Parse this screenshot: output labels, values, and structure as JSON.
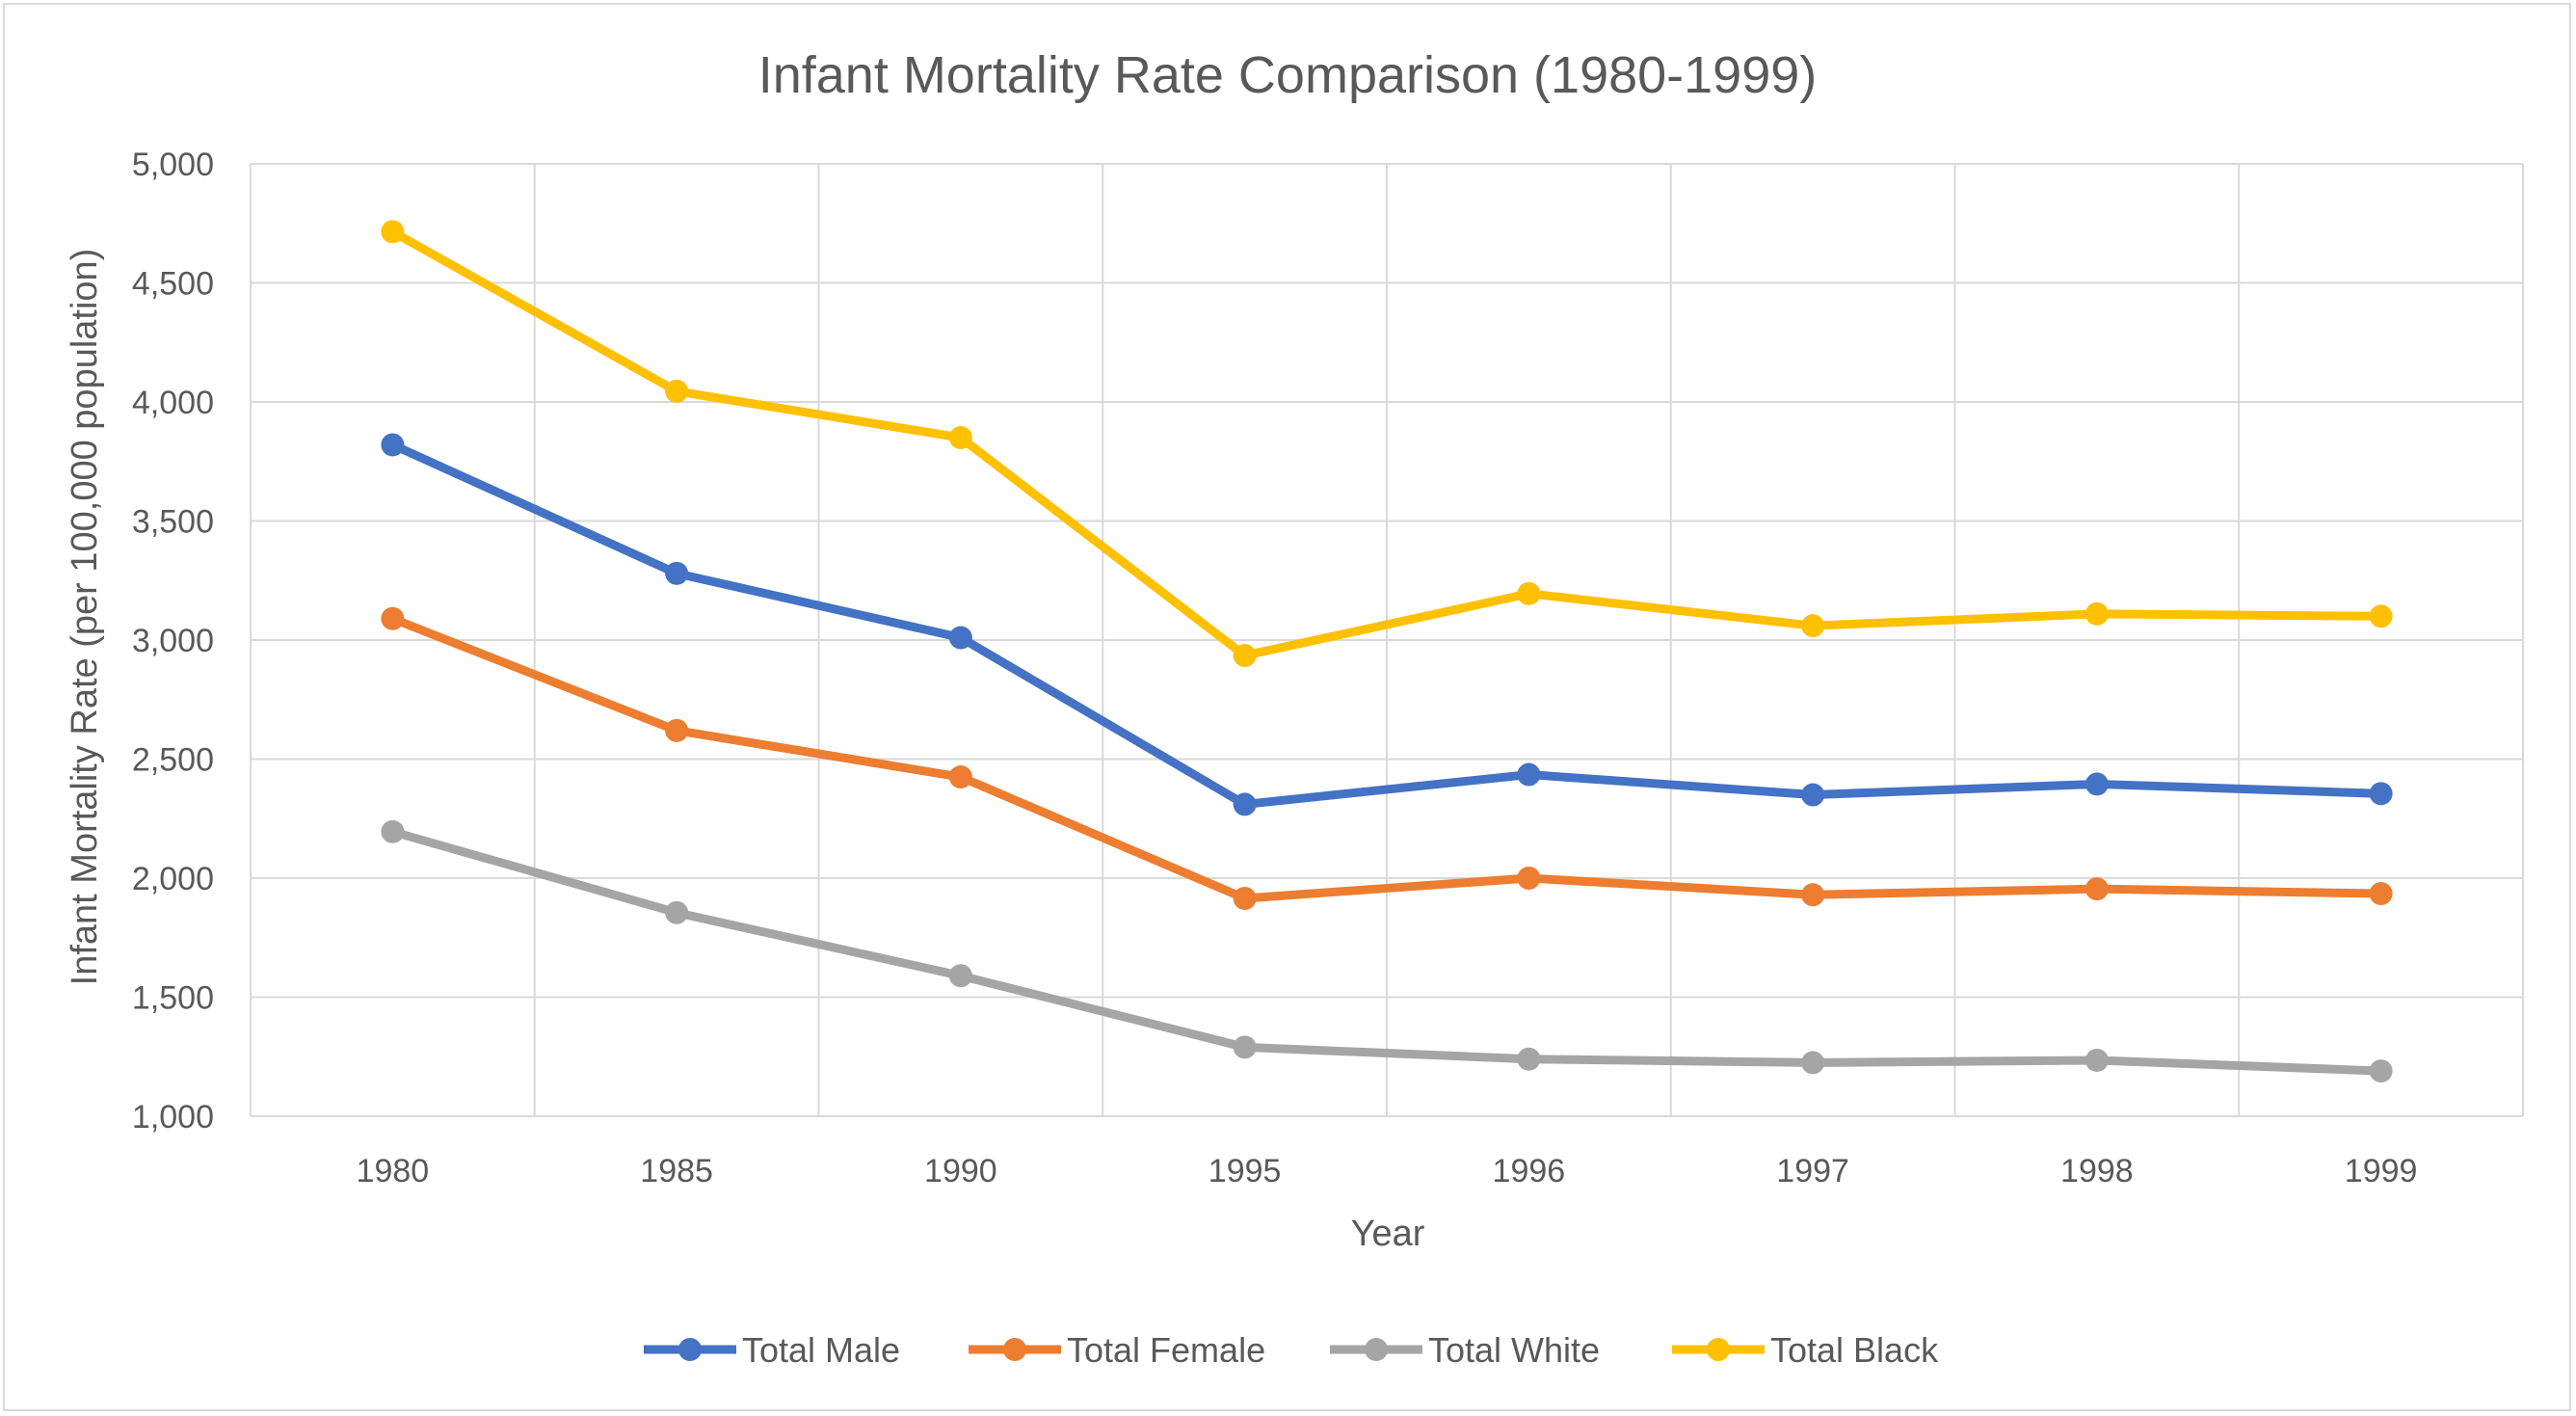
{
  "chart_data": {
    "type": "line",
    "title": "Infant Mortality Rate Comparison (1980-1999)",
    "xlabel": "Year",
    "ylabel": "Infant Mortality Rate (per 100,000 population)",
    "categories": [
      "1980",
      "1985",
      "1990",
      "1995",
      "1996",
      "1997",
      "1998",
      "1999"
    ],
    "ylim": [
      1000,
      5000
    ],
    "yticks": [
      1000,
      1500,
      2000,
      2500,
      3000,
      3500,
      4000,
      4500,
      5000
    ],
    "ytick_labels": [
      "1,000",
      "1,500",
      "2,000",
      "2,500",
      "3,000",
      "3,500",
      "4,000",
      "4,500",
      "5,000"
    ],
    "grid": true,
    "legend_position": "bottom",
    "series": [
      {
        "name": "Total Male",
        "color": "#4472C4",
        "values": [
          3820,
          3280,
          3010,
          2310,
          2435,
          2350,
          2395,
          2355
        ]
      },
      {
        "name": "Total Female",
        "color": "#ED7D31",
        "values": [
          3090,
          2620,
          2425,
          1915,
          2000,
          1930,
          1955,
          1935
        ]
      },
      {
        "name": "Total White",
        "color": "#A5A5A5",
        "values": [
          2195,
          1855,
          1590,
          1290,
          1240,
          1225,
          1235,
          1190
        ]
      },
      {
        "name": "Total Black",
        "color": "#FFC000",
        "values": [
          4715,
          4045,
          3850,
          2935,
          3195,
          3060,
          3110,
          3100
        ]
      }
    ]
  }
}
